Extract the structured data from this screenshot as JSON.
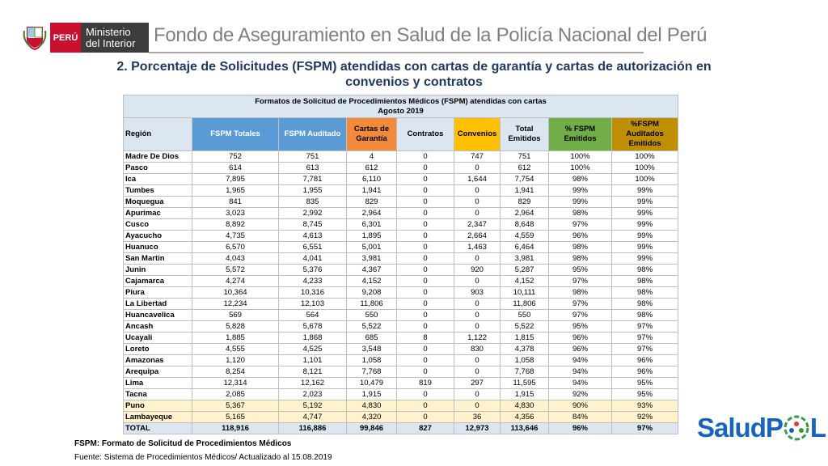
{
  "header": {
    "country": "PERÚ",
    "ministry_line1": "Ministerio",
    "ministry_line2": "del Interior",
    "title": "Fondo de Aseguramiento en Salud de la Policía Nacional del Perú"
  },
  "slide_title": {
    "line1": "2. Porcentaje de Solicitudes (FSPM) atendidas con cartas de garantía y cartas de autorización en",
    "line2": "convenios y contratos"
  },
  "table": {
    "title_line1": "Formatos de Solicitud de Procedimientos Médicos (FSPM) atendidas con cartas",
    "title_line2": "Agosto 2019",
    "columns": [
      "Región",
      "FSPM Totales",
      "FSPM Auditado",
      "Cartas de Garantía",
      "Contratos",
      "Convenios",
      "Total Emitidos",
      "% FSPM Emitidos",
      "%FSPM Auditados Emitidos"
    ],
    "rows": [
      [
        "Madre De Dios",
        "752",
        "751",
        "4",
        "0",
        "747",
        "751",
        "100%",
        "100%"
      ],
      [
        "Pasco",
        "614",
        "613",
        "612",
        "0",
        "0",
        "612",
        "100%",
        "100%"
      ],
      [
        "Ica",
        "7,895",
        "7,781",
        "6,110",
        "0",
        "1,644",
        "7,754",
        "98%",
        "100%"
      ],
      [
        "Tumbes",
        "1,965",
        "1,955",
        "1,941",
        "0",
        "0",
        "1,941",
        "99%",
        "99%"
      ],
      [
        "Moquegua",
        "841",
        "835",
        "829",
        "0",
        "0",
        "829",
        "99%",
        "99%"
      ],
      [
        "Apurimac",
        "3,023",
        "2,992",
        "2,964",
        "0",
        "0",
        "2,964",
        "98%",
        "99%"
      ],
      [
        "Cusco",
        "8,892",
        "8,745",
        "6,301",
        "0",
        "2,347",
        "8,648",
        "97%",
        "99%"
      ],
      [
        "Ayacucho",
        "4,735",
        "4,613",
        "1,895",
        "0",
        "2,664",
        "4,559",
        "96%",
        "99%"
      ],
      [
        "Huanuco",
        "6,570",
        "6,551",
        "5,001",
        "0",
        "1,463",
        "6,464",
        "98%",
        "99%"
      ],
      [
        "San Martin",
        "4,043",
        "4,041",
        "3,981",
        "0",
        "0",
        "3,981",
        "98%",
        "99%"
      ],
      [
        "Junin",
        "5,572",
        "5,376",
        "4,367",
        "0",
        "920",
        "5,287",
        "95%",
        "98%"
      ],
      [
        "Cajamarca",
        "4,274",
        "4,233",
        "4,152",
        "0",
        "0",
        "4,152",
        "97%",
        "98%"
      ],
      [
        "Piura",
        "10,364",
        "10,316",
        "9,208",
        "0",
        "903",
        "10,111",
        "98%",
        "98%"
      ],
      [
        "La Libertad",
        "12,234",
        "12,103",
        "11,806",
        "0",
        "0",
        "11,806",
        "97%",
        "98%"
      ],
      [
        "Huancavelica",
        "569",
        "564",
        "550",
        "0",
        "0",
        "550",
        "97%",
        "98%"
      ],
      [
        "Ancash",
        "5,828",
        "5,678",
        "5,522",
        "0",
        "0",
        "5,522",
        "95%",
        "97%"
      ],
      [
        "Ucayali",
        "1,885",
        "1,868",
        "685",
        "8",
        "1,122",
        "1,815",
        "96%",
        "97%"
      ],
      [
        "Loreto",
        "4,555",
        "4,525",
        "3,548",
        "0",
        "830",
        "4,378",
        "96%",
        "97%"
      ],
      [
        "Amazonas",
        "1,120",
        "1,101",
        "1,058",
        "0",
        "0",
        "1,058",
        "94%",
        "96%"
      ],
      [
        "Arequipa",
        "8,254",
        "8,121",
        "7,768",
        "0",
        "0",
        "7,768",
        "94%",
        "96%"
      ],
      [
        "Lima",
        "12,314",
        "12,162",
        "10,479",
        "819",
        "297",
        "11,595",
        "94%",
        "95%"
      ],
      [
        "Tacna",
        "2,085",
        "2,023",
        "1,915",
        "0",
        "0",
        "1,915",
        "92%",
        "95%"
      ],
      [
        "Puno",
        "5,367",
        "5,192",
        "4,830",
        "0",
        "0",
        "4,830",
        "90%",
        "93%"
      ],
      [
        "Lambayeque",
        "5,165",
        "4,747",
        "4,320",
        "0",
        "36",
        "4,356",
        "84%",
        "92%"
      ],
      [
        "TOTAL",
        "118,916",
        "116,886",
        "99,846",
        "827",
        "12,973",
        "113,646",
        "96%",
        "97%"
      ]
    ]
  },
  "footnotes": [
    "FSPM: Formato de Solicitud de Procedimientos Médicos",
    "Fuente: Sistema de Procedimientos Médicos/ Actualizado al 15.08.2019"
  ],
  "logo": {
    "left": "SaludP",
    "right": "L"
  }
}
